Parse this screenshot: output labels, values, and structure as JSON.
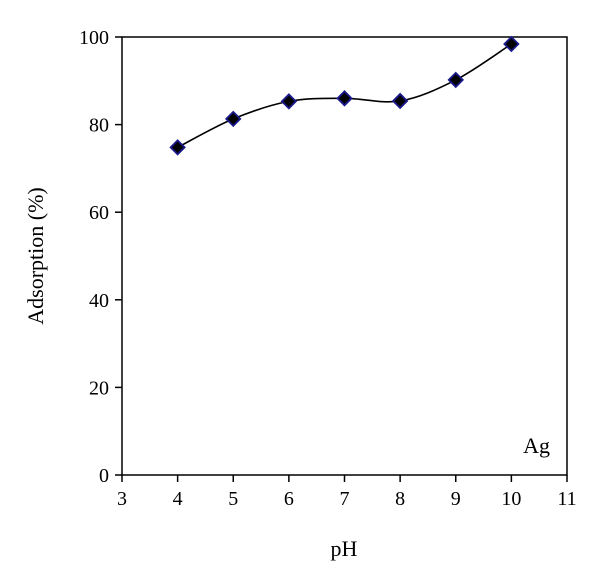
{
  "chart_data": {
    "type": "line",
    "title": "",
    "xlabel": "pH",
    "ylabel": "Adsorption (%)",
    "xlim": [
      3,
      11
    ],
    "ylim": [
      0,
      100
    ],
    "xticks": [
      3,
      4,
      5,
      6,
      7,
      8,
      9,
      10,
      11
    ],
    "yticks": [
      0,
      20,
      40,
      60,
      80,
      100
    ],
    "grid": false,
    "annotation": "Ag",
    "series": [
      {
        "x": [
          4,
          5,
          6,
          7,
          8,
          9,
          10
        ],
        "y": [
          74.8,
          81.3,
          85.3,
          86.0,
          85.4,
          90.2,
          98.4
        ],
        "color": "#000000",
        "marker": "diamond",
        "marker_fill": "#000000",
        "marker_edge": "#1a1a8c",
        "smooth": true
      }
    ]
  }
}
